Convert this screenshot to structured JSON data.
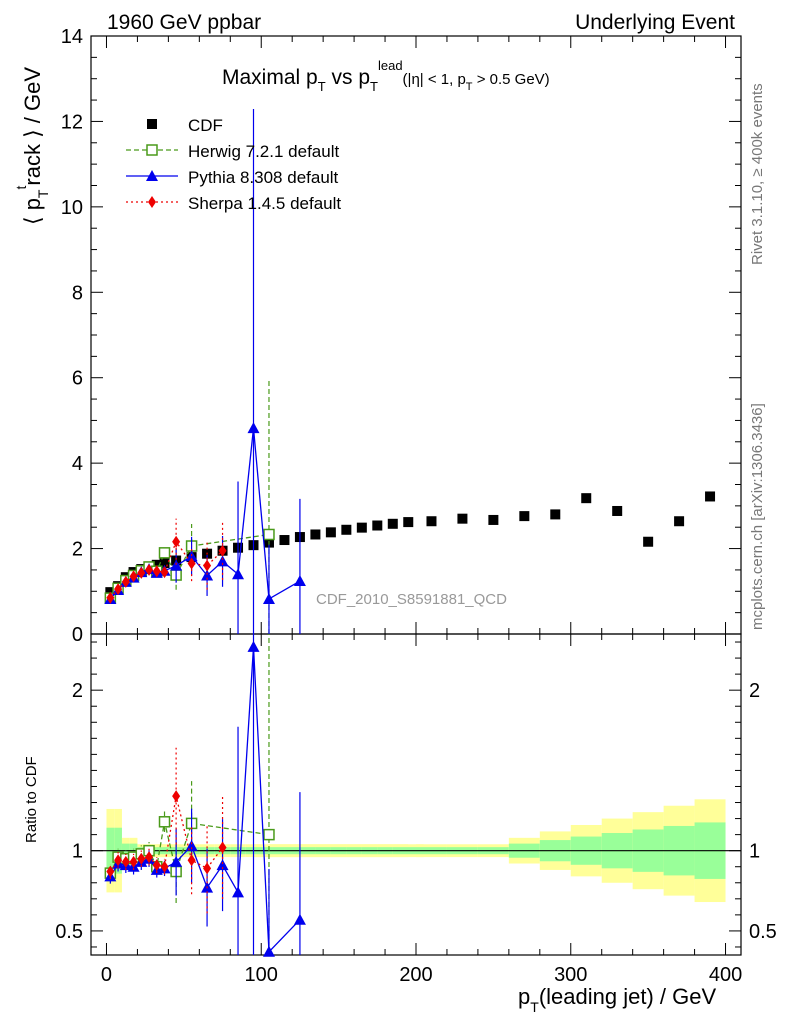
{
  "header": {
    "left": "1960 GeV ppbar",
    "right": "Underlying Event"
  },
  "title_parts": {
    "maximal": "Maximal p",
    "T": "T",
    "vs": " vs p",
    "lead": "lead",
    "eta": "(|η| < 1, p",
    "gt": " > 0.5 GeV)"
  },
  "ylabel_parts": {
    "open": "⟨ p",
    "t": "t",
    "rack": "rack ⟩ / GeV",
    "T": "T"
  },
  "xlabel_parts": {
    "p": "p",
    "T": "T",
    "rest": "(leading jet) / GeV"
  },
  "ratio_label": "Ratio to CDF",
  "watermark": "CDF_2010_S8591881_QCD",
  "side_top": "Rivet 3.1.10, ≥ 400k events",
  "side_bottom": "mcplots.cern.ch [arXiv:1306.3436]",
  "chart_data": {
    "type": "scatter",
    "xlim": [
      -10,
      410
    ],
    "ylim_main": [
      0,
      14
    ],
    "ylim_ratio": [
      0.35,
      2.35
    ],
    "yticks_main": [
      "0",
      "2",
      "4",
      "6",
      "8",
      "10",
      "12",
      "14"
    ],
    "yticks_ratio": [
      "0.5",
      "1",
      "2"
    ],
    "xticks": [
      "0",
      "100",
      "200",
      "300",
      "400"
    ],
    "legend_position": "top-left",
    "series": [
      {
        "name": "CDF",
        "color": "#000000",
        "marker": "square",
        "x": [
          2.5,
          7.5,
          12.5,
          17.5,
          22.5,
          27.5,
          32.5,
          37.5,
          45,
          55,
          65,
          75,
          85,
          95,
          105,
          115,
          125,
          135,
          145,
          155,
          165,
          175,
          185,
          195,
          210,
          230,
          250,
          270,
          290,
          310,
          330,
          350,
          370,
          390
        ],
        "y": [
          0.98,
          1.12,
          1.33,
          1.45,
          1.52,
          1.58,
          1.62,
          1.66,
          1.72,
          1.8,
          1.88,
          1.95,
          2.02,
          2.08,
          2.14,
          2.2,
          2.27,
          2.33,
          2.38,
          2.44,
          2.49,
          2.54,
          2.58,
          2.62,
          2.64,
          2.7,
          2.67,
          2.76,
          2.8,
          3.18,
          2.88,
          2.16,
          2.64,
          3.22
        ]
      },
      {
        "name": "Herwig 7.2.1 default",
        "color": "#4a9a1a",
        "marker": "open-square",
        "x": [
          2.5,
          7.5,
          12.5,
          17.5,
          22.5,
          27.5,
          32.5,
          37.5,
          45,
          55,
          105
        ],
        "y": [
          0.84,
          1.07,
          1.25,
          1.37,
          1.48,
          1.57,
          1.47,
          1.9,
          1.38,
          2.06,
          2.33
        ]
      },
      {
        "name": "Pythia 8.308 default",
        "color": "#0000ee",
        "marker": "triangle",
        "x": [
          2.5,
          7.5,
          12.5,
          17.5,
          22.5,
          27.5,
          32.5,
          37.5,
          45,
          55,
          65,
          75,
          85,
          95,
          105,
          125
        ],
        "y": [
          0.82,
          1.03,
          1.22,
          1.32,
          1.45,
          1.52,
          1.43,
          1.48,
          1.6,
          1.82,
          1.37,
          1.7,
          1.4,
          4.82,
          0.82,
          1.24
        ]
      },
      {
        "name": "Sherpa 1.4.5 default",
        "color": "#ee0000",
        "marker": "diamond",
        "x": [
          2.5,
          7.5,
          12.5,
          17.5,
          22.5,
          27.5,
          32.5,
          37.5,
          45,
          55,
          65,
          75
        ],
        "y": [
          0.85,
          1.05,
          1.22,
          1.35,
          1.43,
          1.5,
          1.47,
          1.45,
          2.16,
          1.65,
          1.6,
          1.95
        ]
      }
    ],
    "ratio": [
      {
        "name": "Herwig 7.2.1 default",
        "x": [
          2.5,
          7.5,
          12.5,
          17.5,
          22.5,
          27.5,
          32.5,
          37.5,
          45,
          55,
          105
        ],
        "y": [
          0.86,
          0.96,
          0.95,
          0.96,
          0.98,
          1.0,
          0.9,
          1.18,
          0.87,
          1.17,
          1.1
        ]
      },
      {
        "name": "Pythia 8.308 default",
        "x": [
          2.5,
          7.5,
          12.5,
          17.5,
          22.5,
          27.5,
          32.5,
          37.5,
          45,
          55,
          65,
          75,
          85,
          95,
          105,
          125
        ],
        "y": [
          0.84,
          0.92,
          0.91,
          0.9,
          0.93,
          0.95,
          0.88,
          0.89,
          0.93,
          1.03,
          0.77,
          0.91,
          0.74,
          2.27,
          0.37,
          0.57
        ]
      },
      {
        "name": "Sherpa 1.4.5 default",
        "x": [
          2.5,
          7.5,
          12.5,
          17.5,
          22.5,
          27.5,
          32.5,
          37.5,
          45,
          55,
          65,
          75
        ],
        "y": [
          0.87,
          0.94,
          0.93,
          0.93,
          0.95,
          0.96,
          0.91,
          0.9,
          1.34,
          0.94,
          0.89,
          1.02
        ]
      }
    ]
  }
}
